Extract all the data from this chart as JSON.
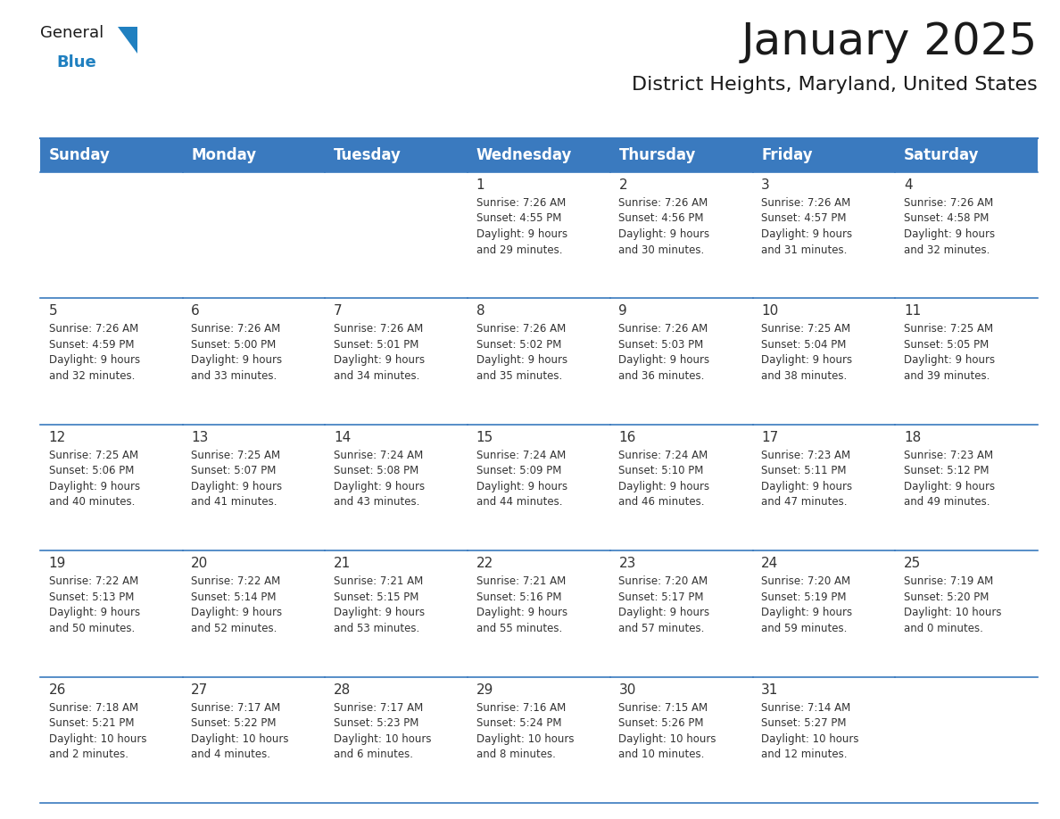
{
  "title": "January 2025",
  "subtitle": "District Heights, Maryland, United States",
  "header_bg": "#3a7abf",
  "header_text_color": "#ffffff",
  "cell_bg": "#ffffff",
  "border_color": "#3a7abf",
  "text_color": "#333333",
  "day_names": [
    "Sunday",
    "Monday",
    "Tuesday",
    "Wednesday",
    "Thursday",
    "Friday",
    "Saturday"
  ],
  "weeks": [
    [
      {
        "day": "",
        "info": ""
      },
      {
        "day": "",
        "info": ""
      },
      {
        "day": "",
        "info": ""
      },
      {
        "day": "1",
        "info": "Sunrise: 7:26 AM\nSunset: 4:55 PM\nDaylight: 9 hours\nand 29 minutes."
      },
      {
        "day": "2",
        "info": "Sunrise: 7:26 AM\nSunset: 4:56 PM\nDaylight: 9 hours\nand 30 minutes."
      },
      {
        "day": "3",
        "info": "Sunrise: 7:26 AM\nSunset: 4:57 PM\nDaylight: 9 hours\nand 31 minutes."
      },
      {
        "day": "4",
        "info": "Sunrise: 7:26 AM\nSunset: 4:58 PM\nDaylight: 9 hours\nand 32 minutes."
      }
    ],
    [
      {
        "day": "5",
        "info": "Sunrise: 7:26 AM\nSunset: 4:59 PM\nDaylight: 9 hours\nand 32 minutes."
      },
      {
        "day": "6",
        "info": "Sunrise: 7:26 AM\nSunset: 5:00 PM\nDaylight: 9 hours\nand 33 minutes."
      },
      {
        "day": "7",
        "info": "Sunrise: 7:26 AM\nSunset: 5:01 PM\nDaylight: 9 hours\nand 34 minutes."
      },
      {
        "day": "8",
        "info": "Sunrise: 7:26 AM\nSunset: 5:02 PM\nDaylight: 9 hours\nand 35 minutes."
      },
      {
        "day": "9",
        "info": "Sunrise: 7:26 AM\nSunset: 5:03 PM\nDaylight: 9 hours\nand 36 minutes."
      },
      {
        "day": "10",
        "info": "Sunrise: 7:25 AM\nSunset: 5:04 PM\nDaylight: 9 hours\nand 38 minutes."
      },
      {
        "day": "11",
        "info": "Sunrise: 7:25 AM\nSunset: 5:05 PM\nDaylight: 9 hours\nand 39 minutes."
      }
    ],
    [
      {
        "day": "12",
        "info": "Sunrise: 7:25 AM\nSunset: 5:06 PM\nDaylight: 9 hours\nand 40 minutes."
      },
      {
        "day": "13",
        "info": "Sunrise: 7:25 AM\nSunset: 5:07 PM\nDaylight: 9 hours\nand 41 minutes."
      },
      {
        "day": "14",
        "info": "Sunrise: 7:24 AM\nSunset: 5:08 PM\nDaylight: 9 hours\nand 43 minutes."
      },
      {
        "day": "15",
        "info": "Sunrise: 7:24 AM\nSunset: 5:09 PM\nDaylight: 9 hours\nand 44 minutes."
      },
      {
        "day": "16",
        "info": "Sunrise: 7:24 AM\nSunset: 5:10 PM\nDaylight: 9 hours\nand 46 minutes."
      },
      {
        "day": "17",
        "info": "Sunrise: 7:23 AM\nSunset: 5:11 PM\nDaylight: 9 hours\nand 47 minutes."
      },
      {
        "day": "18",
        "info": "Sunrise: 7:23 AM\nSunset: 5:12 PM\nDaylight: 9 hours\nand 49 minutes."
      }
    ],
    [
      {
        "day": "19",
        "info": "Sunrise: 7:22 AM\nSunset: 5:13 PM\nDaylight: 9 hours\nand 50 minutes."
      },
      {
        "day": "20",
        "info": "Sunrise: 7:22 AM\nSunset: 5:14 PM\nDaylight: 9 hours\nand 52 minutes."
      },
      {
        "day": "21",
        "info": "Sunrise: 7:21 AM\nSunset: 5:15 PM\nDaylight: 9 hours\nand 53 minutes."
      },
      {
        "day": "22",
        "info": "Sunrise: 7:21 AM\nSunset: 5:16 PM\nDaylight: 9 hours\nand 55 minutes."
      },
      {
        "day": "23",
        "info": "Sunrise: 7:20 AM\nSunset: 5:17 PM\nDaylight: 9 hours\nand 57 minutes."
      },
      {
        "day": "24",
        "info": "Sunrise: 7:20 AM\nSunset: 5:19 PM\nDaylight: 9 hours\nand 59 minutes."
      },
      {
        "day": "25",
        "info": "Sunrise: 7:19 AM\nSunset: 5:20 PM\nDaylight: 10 hours\nand 0 minutes."
      }
    ],
    [
      {
        "day": "26",
        "info": "Sunrise: 7:18 AM\nSunset: 5:21 PM\nDaylight: 10 hours\nand 2 minutes."
      },
      {
        "day": "27",
        "info": "Sunrise: 7:17 AM\nSunset: 5:22 PM\nDaylight: 10 hours\nand 4 minutes."
      },
      {
        "day": "28",
        "info": "Sunrise: 7:17 AM\nSunset: 5:23 PM\nDaylight: 10 hours\nand 6 minutes."
      },
      {
        "day": "29",
        "info": "Sunrise: 7:16 AM\nSunset: 5:24 PM\nDaylight: 10 hours\nand 8 minutes."
      },
      {
        "day": "30",
        "info": "Sunrise: 7:15 AM\nSunset: 5:26 PM\nDaylight: 10 hours\nand 10 minutes."
      },
      {
        "day": "31",
        "info": "Sunrise: 7:14 AM\nSunset: 5:27 PM\nDaylight: 10 hours\nand 12 minutes."
      },
      {
        "day": "",
        "info": ""
      }
    ]
  ],
  "logo_general_color": "#1a1a1a",
  "logo_blue_color": "#2080c0",
  "logo_triangle_color": "#2080c0",
  "title_fontsize": 36,
  "subtitle_fontsize": 16,
  "header_fontsize": 12,
  "day_num_fontsize": 11,
  "info_fontsize": 8.5
}
